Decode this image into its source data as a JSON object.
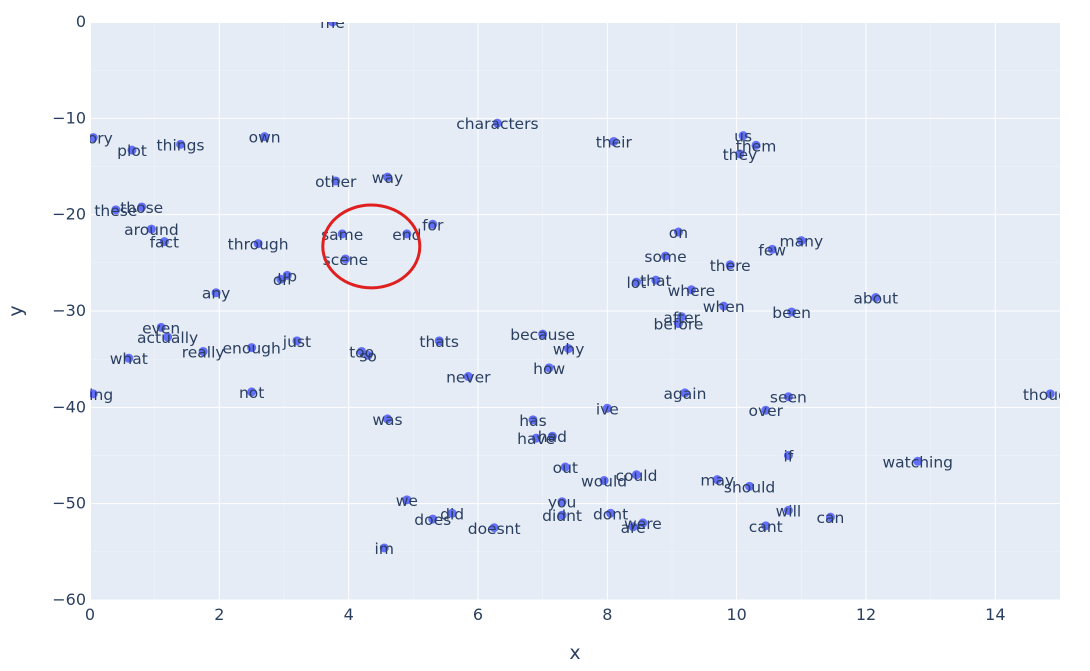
{
  "chart_data": {
    "type": "scatter",
    "title": "",
    "xlabel": "x",
    "ylabel": "y",
    "xlim": [
      0,
      15
    ],
    "ylim": [
      -60,
      0
    ],
    "x_ticks": [
      0,
      2,
      4,
      6,
      8,
      10,
      12,
      14
    ],
    "y_ticks": [
      0,
      -10,
      -20,
      -30,
      -40,
      -50,
      -60
    ],
    "grid": true,
    "colors": {
      "plot_bg": "#e5ecf6",
      "marker": "#636efa",
      "text": "#2a3f5f",
      "annotation": "#e0201f"
    },
    "annotation": {
      "shape": "ellipse",
      "center": [
        4.35,
        -23.3
      ],
      "radius_x": 0.75,
      "radius_y": 4.3
    },
    "points": [
      {
        "label": "me",
        "x": 3.75,
        "y": 0
      },
      {
        "label": "story",
        "x": 0.05,
        "y": -12
      },
      {
        "label": "plot",
        "x": 0.65,
        "y": -13.3
      },
      {
        "label": "things",
        "x": 1.4,
        "y": -12.7
      },
      {
        "label": "own",
        "x": 2.7,
        "y": -11.9
      },
      {
        "label": "characters",
        "x": 6.3,
        "y": -10.5
      },
      {
        "label": "their",
        "x": 8.1,
        "y": -12.4
      },
      {
        "label": "us",
        "x": 10.1,
        "y": -11.8
      },
      {
        "label": "them",
        "x": 10.3,
        "y": -12.8
      },
      {
        "label": "they",
        "x": 10.05,
        "y": -13.7
      },
      {
        "label": "other",
        "x": 3.8,
        "y": -16.5
      },
      {
        "label": "way",
        "x": 4.6,
        "y": -16.1
      },
      {
        "label": "these",
        "x": 0.4,
        "y": -19.5
      },
      {
        "label": "those",
        "x": 0.8,
        "y": -19.2
      },
      {
        "label": "for",
        "x": 5.3,
        "y": -21
      },
      {
        "label": "around",
        "x": 0.95,
        "y": -21.5
      },
      {
        "label": "fact",
        "x": 1.15,
        "y": -22.8
      },
      {
        "label": "same",
        "x": 3.9,
        "y": -22
      },
      {
        "label": "end",
        "x": 4.9,
        "y": -22
      },
      {
        "label": "through",
        "x": 2.6,
        "y": -23
      },
      {
        "label": "scene",
        "x": 3.95,
        "y": -24.6
      },
      {
        "label": "on",
        "x": 9.1,
        "y": -21.8
      },
      {
        "label": "some",
        "x": 8.9,
        "y": -24.3
      },
      {
        "label": "many",
        "x": 11.0,
        "y": -22.7
      },
      {
        "label": "few",
        "x": 10.55,
        "y": -23.6
      },
      {
        "label": "there",
        "x": 9.9,
        "y": -25.2
      },
      {
        "label": "up",
        "x": 3.05,
        "y": -26.3
      },
      {
        "label": "or",
        "x": 2.95,
        "y": -26.7
      },
      {
        "label": "that",
        "x": 8.75,
        "y": -26.8
      },
      {
        "label": "lot",
        "x": 8.45,
        "y": -27
      },
      {
        "label": "where",
        "x": 9.3,
        "y": -27.8
      },
      {
        "label": "any",
        "x": 1.95,
        "y": -28.1
      },
      {
        "label": "about",
        "x": 12.15,
        "y": -28.6
      },
      {
        "label": "when",
        "x": 9.8,
        "y": -29.5
      },
      {
        "label": "been",
        "x": 10.85,
        "y": -30.1
      },
      {
        "label": "after",
        "x": 9.15,
        "y": -30.6
      },
      {
        "label": "before",
        "x": 9.1,
        "y": -31.3
      },
      {
        "label": "even",
        "x": 1.1,
        "y": -31.7
      },
      {
        "label": "actually",
        "x": 1.2,
        "y": -32.7
      },
      {
        "label": "because",
        "x": 7.0,
        "y": -32.4
      },
      {
        "label": "thats",
        "x": 5.4,
        "y": -33.1
      },
      {
        "label": "just",
        "x": 3.2,
        "y": -33.1
      },
      {
        "label": "why",
        "x": 7.4,
        "y": -33.9
      },
      {
        "label": "enough",
        "x": 2.5,
        "y": -33.8
      },
      {
        "label": "really",
        "x": 1.75,
        "y": -34.2
      },
      {
        "label": "too",
        "x": 4.2,
        "y": -34.2
      },
      {
        "label": "so",
        "x": 4.3,
        "y": -34.6
      },
      {
        "label": "what",
        "x": 0.6,
        "y": -34.9
      },
      {
        "label": "how",
        "x": 7.1,
        "y": -35.9
      },
      {
        "label": "never",
        "x": 5.85,
        "y": -36.8
      },
      {
        "label": "thing",
        "x": 0.05,
        "y": -38.6
      },
      {
        "label": "not",
        "x": 2.5,
        "y": -38.4
      },
      {
        "label": "again",
        "x": 9.2,
        "y": -38.5
      },
      {
        "label": "seen",
        "x": 10.8,
        "y": -38.9
      },
      {
        "label": "though",
        "x": 14.85,
        "y": -38.6
      },
      {
        "label": "ive",
        "x": 8.0,
        "y": -40.1
      },
      {
        "label": "over",
        "x": 10.45,
        "y": -40.3
      },
      {
        "label": "was",
        "x": 4.6,
        "y": -41.2
      },
      {
        "label": "has",
        "x": 6.85,
        "y": -41.3
      },
      {
        "label": "have",
        "x": 6.9,
        "y": -43.2
      },
      {
        "label": "had",
        "x": 7.15,
        "y": -43
      },
      {
        "label": "if",
        "x": 10.8,
        "y": -45
      },
      {
        "label": "watching",
        "x": 12.8,
        "y": -45.6
      },
      {
        "label": "out",
        "x": 7.35,
        "y": -46.2
      },
      {
        "label": "could",
        "x": 8.45,
        "y": -47
      },
      {
        "label": "would",
        "x": 7.95,
        "y": -47.6
      },
      {
        "label": "may",
        "x": 9.7,
        "y": -47.5
      },
      {
        "label": "should",
        "x": 10.2,
        "y": -48.2
      },
      {
        "label": "we",
        "x": 4.9,
        "y": -49.6
      },
      {
        "label": "you",
        "x": 7.3,
        "y": -49.8
      },
      {
        "label": "did",
        "x": 5.6,
        "y": -51
      },
      {
        "label": "does",
        "x": 5.3,
        "y": -51.6
      },
      {
        "label": "didnt",
        "x": 7.3,
        "y": -51.2
      },
      {
        "label": "dont",
        "x": 8.05,
        "y": -51
      },
      {
        "label": "will",
        "x": 10.8,
        "y": -50.7
      },
      {
        "label": "can",
        "x": 11.45,
        "y": -51.4
      },
      {
        "label": "were",
        "x": 8.55,
        "y": -52
      },
      {
        "label": "are",
        "x": 8.4,
        "y": -52.4
      },
      {
        "label": "cant",
        "x": 10.45,
        "y": -52.3
      },
      {
        "label": "doesnt",
        "x": 6.25,
        "y": -52.5
      },
      {
        "label": "im",
        "x": 4.55,
        "y": -54.6
      }
    ]
  }
}
